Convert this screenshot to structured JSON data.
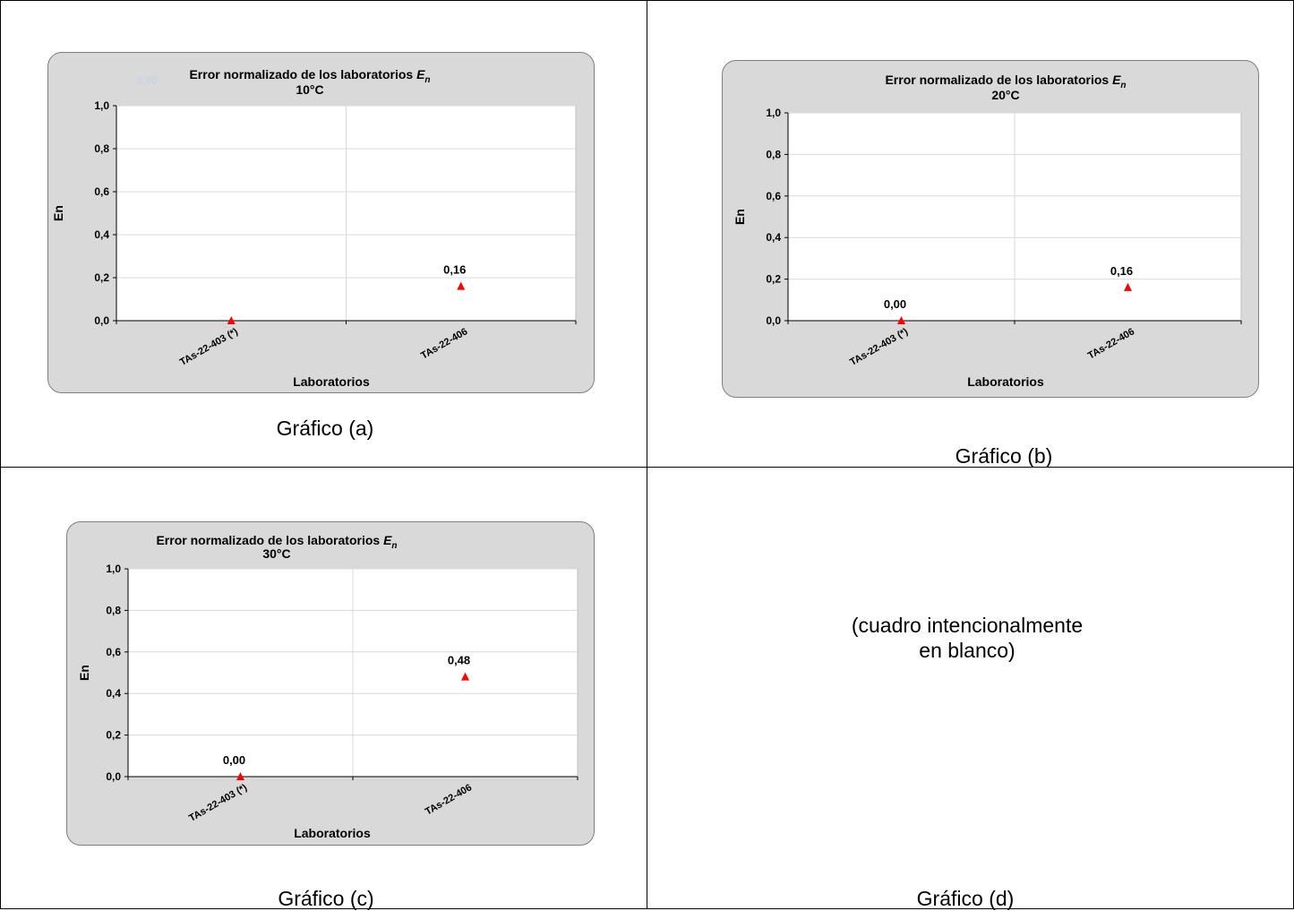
{
  "charts": [
    {
      "id": "a",
      "title": "Error normalizado de los laboratorios ",
      "title_var": "E",
      "title_sub": "n",
      "subtitle": "10°C",
      "ylabel": "En",
      "xlabel": "Laboratorios",
      "caption": "Gráfico (a)",
      "faint_label": "0,00"
    },
    {
      "id": "b",
      "title": "Error  normalizado de los laboratorios ",
      "title_var": "E",
      "title_sub": "n",
      "subtitle": "20°C",
      "ylabel": "En",
      "xlabel": "Laboratorios",
      "caption": "Gráfico (b)"
    },
    {
      "id": "c",
      "title": "Error  normalizado de los laboratorios ",
      "title_var": "E",
      "title_sub": "n",
      "subtitle": "30°C",
      "ylabel": "En",
      "xlabel": "Laboratorios",
      "caption": "Gráfico (c)"
    }
  ],
  "blank_cell": {
    "line1": "(cuadro intencionalmente",
    "line2": "en blanco)",
    "caption": "Gráfico (d)"
  },
  "colors": {
    "marker": "#ff0000",
    "panel": "#d9d9d9",
    "plot_bg": "#ffffff",
    "gridline": "#d9d9d9"
  },
  "chart_data": [
    {
      "type": "scatter",
      "title": "Error normalizado de los laboratorios En 10°C",
      "xlabel": "Laboratorios",
      "ylabel": "En",
      "categories": [
        "TAs-22-403 (*)",
        "TAs-22-406"
      ],
      "values": [
        0.0,
        0.16
      ],
      "data_labels": [
        "",
        "0,16"
      ],
      "ylim": [
        0,
        1.0
      ],
      "yticks": [
        "0,0",
        "0,2",
        "0,4",
        "0,6",
        "0,8",
        "1,0"
      ],
      "grid": true,
      "marker": "triangle"
    },
    {
      "type": "scatter",
      "title": "Error normalizado de los laboratorios En 20°C",
      "xlabel": "Laboratorios",
      "ylabel": "En",
      "categories": [
        "TAs-22-403 (*)",
        "TAs-22-406"
      ],
      "values": [
        0.0,
        0.16
      ],
      "data_labels": [
        "0,00",
        "0,16"
      ],
      "ylim": [
        0,
        1.0
      ],
      "yticks": [
        "0,0",
        "0,2",
        "0,4",
        "0,6",
        "0,8",
        "1,0"
      ],
      "grid": true,
      "marker": "triangle"
    },
    {
      "type": "scatter",
      "title": "Error normalizado de los laboratorios En 30°C",
      "xlabel": "Laboratorios",
      "ylabel": "En",
      "categories": [
        "TAs-22-403 (*)",
        "TAs-22-406"
      ],
      "values": [
        0.0,
        0.48
      ],
      "data_labels": [
        "0,00",
        "0,48"
      ],
      "ylim": [
        0,
        1.0
      ],
      "yticks": [
        "0,0",
        "0,2",
        "0,4",
        "0,6",
        "0,8",
        "1,0"
      ],
      "grid": true,
      "marker": "triangle"
    }
  ]
}
